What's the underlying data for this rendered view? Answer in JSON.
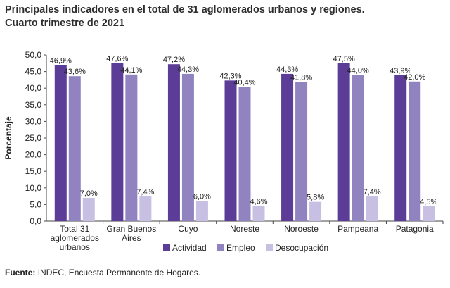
{
  "title_line1": "Principales indicadores en el total de 31 aglomerados urbanos y regiones.",
  "title_line2": "Cuarto trimestre de 2021",
  "source_label": "Fuente:",
  "source_text": "INDEC, Encuesta Permanente de Hogares.",
  "chart_data": {
    "type": "bar",
    "ylabel": "Porcentaje",
    "ylim": [
      0,
      50
    ],
    "yticks": [
      "0,0",
      "5,0",
      "10,0",
      "15,0",
      "20,0",
      "25,0",
      "30,0",
      "35,0",
      "40,0",
      "45,0",
      "50,0"
    ],
    "categories": [
      [
        "Total 31",
        "aglomerados",
        "urbanos"
      ],
      [
        "Gran Buenos",
        "Aires"
      ],
      [
        "Cuyo"
      ],
      [
        "Noreste"
      ],
      [
        "Noroeste"
      ],
      [
        "Pampeana"
      ],
      [
        "Patagonia"
      ]
    ],
    "series": [
      {
        "name": "Actividad",
        "color": "#5b3c97",
        "values": [
          46.9,
          47.6,
          47.2,
          42.3,
          44.3,
          47.5,
          43.9
        ],
        "labels": [
          "46,9%",
          "47,6%",
          "47,2%",
          "42,3%",
          "44,3%",
          "47,5%",
          "43,9%"
        ]
      },
      {
        "name": "Empleo",
        "color": "#9083c0",
        "values": [
          43.6,
          44.1,
          44.3,
          40.4,
          41.8,
          44.0,
          42.0
        ],
        "labels": [
          "43,6%",
          "44,1%",
          "44,3%",
          "40,4%",
          "41,8%",
          "44,0%",
          "42,0%"
        ]
      },
      {
        "name": "Desocupación",
        "color": "#c8c0e2",
        "values": [
          7.0,
          7.4,
          6.0,
          4.6,
          5.8,
          7.4,
          4.5
        ],
        "labels": [
          "7,0%",
          "7,4%",
          "6,0%",
          "4,6%",
          "5,8%",
          "7,4%",
          "4,5%"
        ]
      }
    ],
    "legend_position": "bottom",
    "grid": false
  }
}
